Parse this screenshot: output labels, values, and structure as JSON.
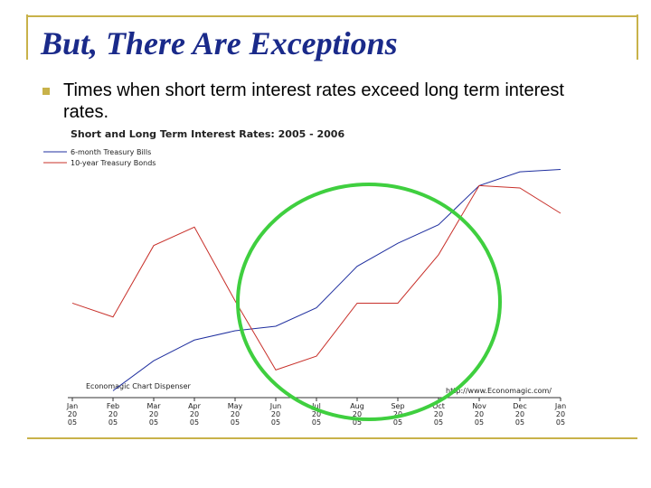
{
  "slide": {
    "title": "But, There Are Exceptions",
    "bullet": "Times when short term interest rates exceed long term interest rates."
  },
  "chart_data": {
    "type": "line",
    "title": "Short and Long Term Interest Rates: 2005 - 2006",
    "source_left": "Economagic Chart Dispenser",
    "source_right": "http://www.Economagic.com/",
    "categories": [
      [
        "Jan",
        "20",
        "05"
      ],
      [
        "Feb",
        "20",
        "05"
      ],
      [
        "Mar",
        "20",
        "05"
      ],
      [
        "Apr",
        "20",
        "05"
      ],
      [
        "May",
        "20",
        "05"
      ],
      [
        "Jun",
        "20",
        "05"
      ],
      [
        "Jul",
        "20",
        "05"
      ],
      [
        "Aug",
        "20",
        "05"
      ],
      [
        "Sep",
        "20",
        "05"
      ],
      [
        "Oct",
        "20",
        "05"
      ],
      [
        "Nov",
        "20",
        "05"
      ],
      [
        "Dec",
        "20",
        "05"
      ],
      [
        "Jan",
        "20",
        "05"
      ]
    ],
    "series": [
      {
        "name": "6-month Treasury Bills",
        "color": "#1f2f9f",
        "values": [
          null,
          3,
          16,
          25,
          29,
          31,
          39,
          57,
          67,
          75,
          92,
          98,
          99
        ]
      },
      {
        "name": "10-year Treasury Bonds",
        "color": "#c8302a",
        "values": [
          41,
          35,
          66,
          74,
          42,
          12,
          18,
          41,
          41,
          62,
          92,
          91,
          80
        ]
      }
    ],
    "ylim": [
      0,
      100
    ]
  }
}
